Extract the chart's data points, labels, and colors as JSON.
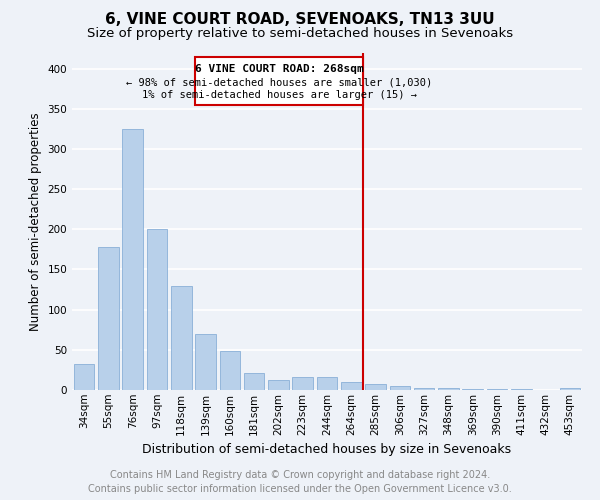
{
  "title": "6, VINE COURT ROAD, SEVENOAKS, TN13 3UU",
  "subtitle": "Size of property relative to semi-detached houses in Sevenoaks",
  "xlabel": "Distribution of semi-detached houses by size in Sevenoaks",
  "ylabel": "Number of semi-detached properties",
  "categories": [
    "34sqm",
    "55sqm",
    "76sqm",
    "97sqm",
    "118sqm",
    "139sqm",
    "160sqm",
    "181sqm",
    "202sqm",
    "223sqm",
    "244sqm",
    "264sqm",
    "285sqm",
    "306sqm",
    "327sqm",
    "348sqm",
    "369sqm",
    "390sqm",
    "411sqm",
    "432sqm",
    "453sqm"
  ],
  "values": [
    32,
    178,
    325,
    200,
    130,
    70,
    48,
    21,
    13,
    16,
    16,
    10,
    8,
    5,
    3,
    3,
    1,
    1,
    1,
    0,
    2
  ],
  "bar_color": "#b8d0ea",
  "bar_edge_color": "#8ab0d8",
  "background_color": "#eef2f8",
  "grid_color": "#ffffff",
  "vline_color": "#cc0000",
  "vline_label": "6 VINE COURT ROAD: 268sqm",
  "annotation_line1": "← 98% of semi-detached houses are smaller (1,030)",
  "annotation_line2": "1% of semi-detached houses are larger (15) →",
  "box_color": "#cc0000",
  "ylim": [
    0,
    420
  ],
  "yticks": [
    0,
    50,
    100,
    150,
    200,
    250,
    300,
    350,
    400
  ],
  "footer_line1": "Contains HM Land Registry data © Crown copyright and database right 2024.",
  "footer_line2": "Contains public sector information licensed under the Open Government Licence v3.0.",
  "title_fontsize": 11,
  "subtitle_fontsize": 9.5,
  "xlabel_fontsize": 9,
  "ylabel_fontsize": 8.5,
  "tick_fontsize": 7.5,
  "footer_fontsize": 7,
  "annot_fontsize": 8
}
